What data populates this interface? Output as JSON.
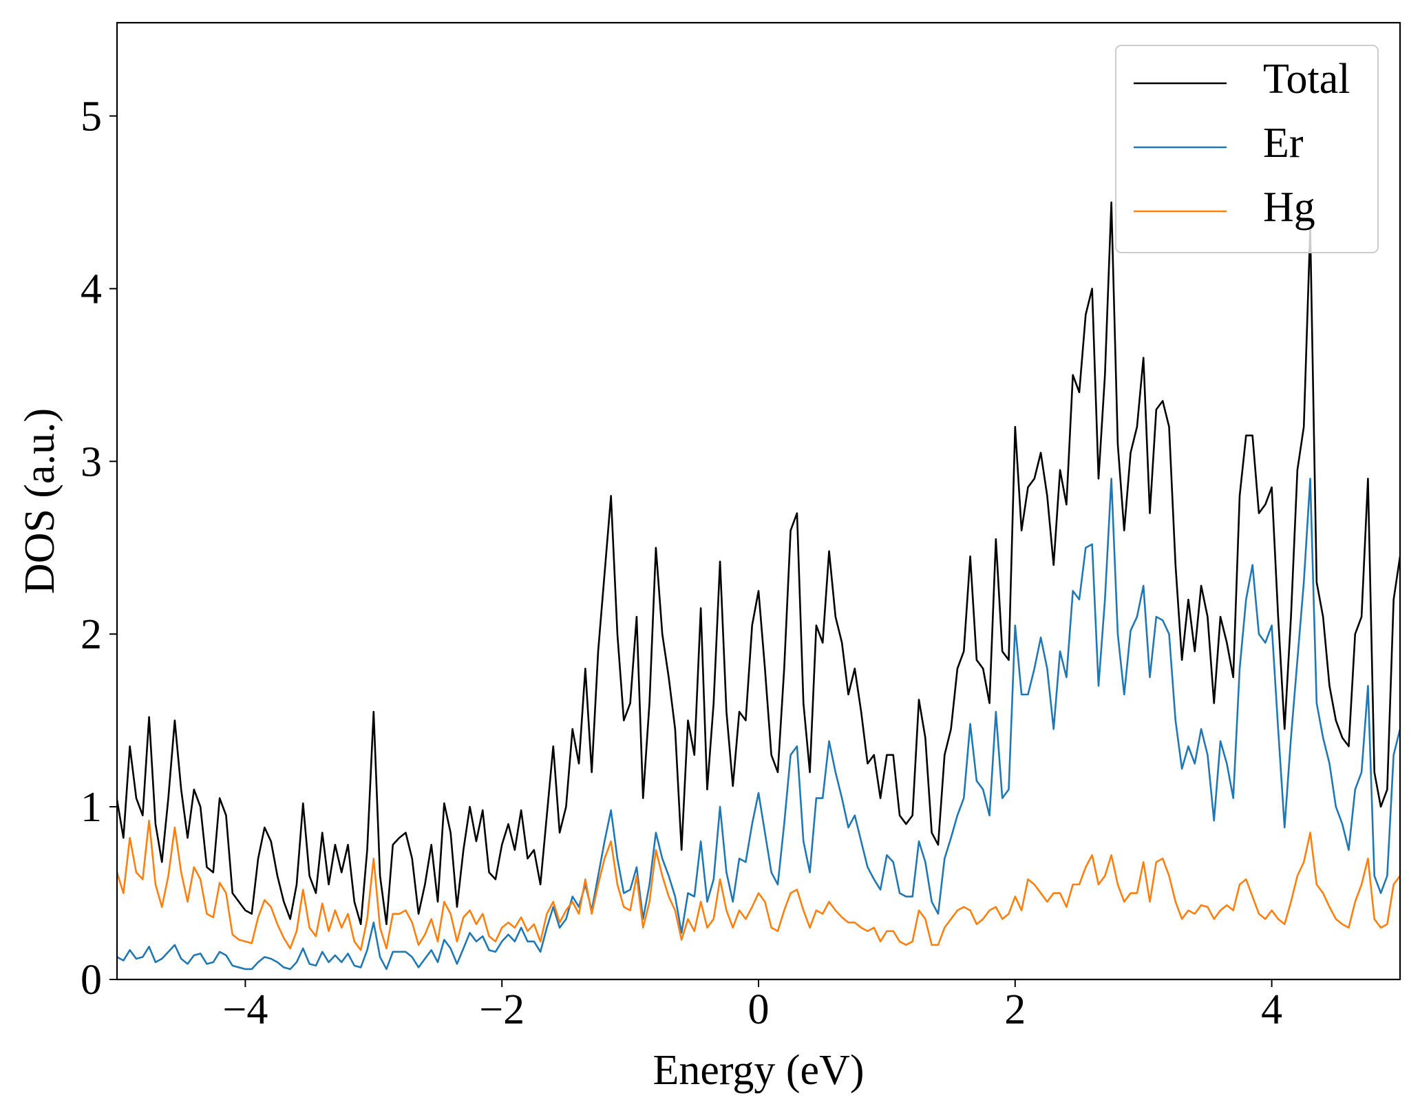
{
  "chart_data": {
    "type": "line",
    "x_label": "Energy (eV)",
    "y_label": "DOS (a.u.)",
    "xlim": [
      -5,
      5
    ],
    "ylim": [
      0,
      5.54
    ],
    "xticks": [
      {
        "value": -4,
        "label": "−4"
      },
      {
        "value": -2,
        "label": "−2"
      },
      0,
      2,
      4
    ],
    "yticks": [
      0,
      1,
      2,
      3,
      4,
      5
    ],
    "legend": "upper right",
    "x": [
      -5,
      -4.95,
      -4.9,
      -4.85,
      -4.8,
      -4.75,
      -4.7,
      -4.65,
      -4.6,
      -4.55,
      -4.5,
      -4.45,
      -4.4,
      -4.35,
      -4.3,
      -4.25,
      -4.2,
      -4.15,
      -4.1,
      -4.05,
      -4,
      -3.95,
      -3.9,
      -3.85,
      -3.8,
      -3.75,
      -3.7,
      -3.65,
      -3.6,
      -3.55,
      -3.5,
      -3.45,
      -3.4,
      -3.35,
      -3.3,
      -3.25,
      -3.2,
      -3.15,
      -3.1,
      -3.05,
      -3,
      -2.95,
      -2.9,
      -2.85,
      -2.8,
      -2.75,
      -2.7,
      -2.65,
      -2.6,
      -2.55,
      -2.5,
      -2.45,
      -2.4,
      -2.35,
      -2.3,
      -2.25,
      -2.2,
      -2.15,
      -2.1,
      -2.05,
      -2,
      -1.95,
      -1.9,
      -1.85,
      -1.8,
      -1.75,
      -1.7,
      -1.65,
      -1.6,
      -1.55,
      -1.5,
      -1.45,
      -1.4,
      -1.35,
      -1.3,
      -1.25,
      -1.2,
      -1.15,
      -1.1,
      -1.05,
      -1,
      -0.95,
      -0.9,
      -0.85,
      -0.8,
      -0.75,
      -0.7,
      -0.65,
      -0.6,
      -0.55,
      -0.5,
      -0.45,
      -0.4,
      -0.35,
      -0.3,
      -0.25,
      -0.2,
      -0.15,
      -0.1,
      -0.05,
      0,
      0.05,
      0.1,
      0.15,
      0.2,
      0.25,
      0.3,
      0.35,
      0.4,
      0.45,
      0.5,
      0.55,
      0.6,
      0.65,
      0.7,
      0.75,
      0.8,
      0.85,
      0.9,
      0.95,
      1,
      1.05,
      1.1,
      1.15,
      1.2,
      1.25,
      1.3,
      1.35,
      1.4,
      1.45,
      1.5,
      1.55,
      1.6,
      1.65,
      1.7,
      1.75,
      1.8,
      1.85,
      1.9,
      1.95,
      2,
      2.05,
      2.1,
      2.15,
      2.2,
      2.25,
      2.3,
      2.35,
      2.4,
      2.45,
      2.5,
      2.55,
      2.6,
      2.65,
      2.7,
      2.75,
      2.8,
      2.85,
      2.9,
      2.95,
      3,
      3.05,
      3.1,
      3.15,
      3.2,
      3.25,
      3.3,
      3.35,
      3.4,
      3.45,
      3.5,
      3.55,
      3.6,
      3.65,
      3.7,
      3.75,
      3.8,
      3.85,
      3.9,
      3.95,
      4,
      4.05,
      4.1,
      4.15,
      4.2,
      4.25,
      4.3,
      4.35,
      4.4,
      4.45,
      4.5,
      4.55,
      4.6,
      4.65,
      4.7,
      4.75,
      4.8,
      4.85,
      4.9,
      4.95,
      5
    ],
    "series": [
      {
        "name": "Total",
        "color": "#000000",
        "values": [
          1.04,
          0.82,
          1.35,
          1.05,
          0.95,
          1.52,
          0.9,
          0.68,
          1.05,
          1.5,
          1.1,
          0.82,
          1.1,
          1.0,
          0.65,
          0.62,
          1.05,
          0.95,
          0.5,
          0.45,
          0.4,
          0.38,
          0.7,
          0.88,
          0.8,
          0.6,
          0.45,
          0.35,
          0.55,
          1.02,
          0.6,
          0.5,
          0.85,
          0.55,
          0.78,
          0.62,
          0.78,
          0.45,
          0.32,
          0.75,
          1.55,
          0.6,
          0.32,
          0.78,
          0.82,
          0.85,
          0.7,
          0.38,
          0.55,
          0.78,
          0.45,
          1.02,
          0.85,
          0.42,
          0.75,
          1.0,
          0.8,
          0.98,
          0.62,
          0.58,
          0.78,
          0.9,
          0.75,
          0.98,
          0.7,
          0.75,
          0.55,
          0.95,
          1.35,
          0.85,
          1.0,
          1.45,
          1.25,
          1.8,
          1.2,
          1.9,
          2.35,
          2.8,
          2.0,
          1.5,
          1.6,
          2.1,
          1.05,
          1.6,
          2.5,
          2.0,
          1.75,
          1.45,
          0.75,
          1.5,
          1.3,
          2.15,
          1.1,
          1.6,
          2.42,
          1.55,
          1.12,
          1.55,
          1.5,
          2.05,
          2.25,
          1.8,
          1.3,
          1.2,
          1.8,
          2.6,
          2.7,
          1.6,
          1.2,
          2.05,
          1.95,
          2.48,
          2.1,
          1.95,
          1.65,
          1.8,
          1.55,
          1.25,
          1.3,
          1.05,
          1.3,
          1.3,
          0.95,
          0.9,
          0.95,
          1.62,
          1.4,
          0.85,
          0.78,
          1.3,
          1.45,
          1.8,
          1.9,
          2.45,
          1.85,
          1.8,
          1.6,
          2.55,
          1.9,
          1.85,
          3.2,
          2.6,
          2.85,
          2.9,
          3.05,
          2.8,
          2.4,
          2.95,
          2.75,
          3.5,
          3.4,
          3.85,
          4.0,
          2.9,
          3.5,
          4.5,
          3.1,
          2.6,
          3.05,
          3.2,
          3.6,
          2.7,
          3.3,
          3.35,
          3.2,
          2.4,
          1.85,
          2.2,
          1.9,
          2.28,
          2.1,
          1.6,
          2.1,
          1.95,
          1.75,
          2.8,
          3.15,
          3.15,
          2.7,
          2.75,
          2.85,
          2.1,
          1.45,
          2.1,
          2.95,
          3.2,
          4.35,
          2.3,
          2.1,
          1.7,
          1.5,
          1.4,
          1.35,
          2.0,
          2.1,
          2.9,
          1.2,
          1.0,
          1.1,
          2.2,
          2.45
        ]
      },
      {
        "name": "Er",
        "color": "#1f77b4",
        "values": [
          0.13,
          0.11,
          0.17,
          0.12,
          0.13,
          0.19,
          0.1,
          0.12,
          0.16,
          0.2,
          0.12,
          0.09,
          0.14,
          0.15,
          0.09,
          0.1,
          0.16,
          0.14,
          0.08,
          0.07,
          0.06,
          0.06,
          0.1,
          0.13,
          0.12,
          0.1,
          0.07,
          0.06,
          0.1,
          0.18,
          0.09,
          0.08,
          0.16,
          0.1,
          0.14,
          0.1,
          0.15,
          0.08,
          0.07,
          0.17,
          0.33,
          0.13,
          0.06,
          0.16,
          0.16,
          0.16,
          0.13,
          0.07,
          0.12,
          0.17,
          0.1,
          0.23,
          0.18,
          0.09,
          0.18,
          0.27,
          0.22,
          0.25,
          0.17,
          0.16,
          0.22,
          0.26,
          0.22,
          0.3,
          0.22,
          0.22,
          0.16,
          0.3,
          0.42,
          0.3,
          0.35,
          0.48,
          0.42,
          0.55,
          0.4,
          0.6,
          0.8,
          0.98,
          0.7,
          0.5,
          0.52,
          0.65,
          0.35,
          0.55,
          0.85,
          0.7,
          0.6,
          0.48,
          0.27,
          0.5,
          0.48,
          0.8,
          0.45,
          0.58,
          1.0,
          0.62,
          0.45,
          0.7,
          0.68,
          0.9,
          1.08,
          0.85,
          0.62,
          0.55,
          0.9,
          1.3,
          1.35,
          0.8,
          0.62,
          1.05,
          1.05,
          1.38,
          1.2,
          1.05,
          0.88,
          0.95,
          0.8,
          0.65,
          0.58,
          0.52,
          0.72,
          0.68,
          0.5,
          0.48,
          0.48,
          0.8,
          0.68,
          0.45,
          0.38,
          0.7,
          0.82,
          0.95,
          1.05,
          1.48,
          1.15,
          1.1,
          0.95,
          1.55,
          1.05,
          1.1,
          2.05,
          1.65,
          1.65,
          1.8,
          1.98,
          1.8,
          1.45,
          1.9,
          1.75,
          2.25,
          2.2,
          2.5,
          2.52,
          1.7,
          2.2,
          2.9,
          2.0,
          1.65,
          2.02,
          2.1,
          2.28,
          1.75,
          2.1,
          2.08,
          2.0,
          1.5,
          1.22,
          1.35,
          1.25,
          1.45,
          1.3,
          0.92,
          1.38,
          1.25,
          1.05,
          1.8,
          2.2,
          2.4,
          2.0,
          1.95,
          2.05,
          1.45,
          0.88,
          1.4,
          1.85,
          2.3,
          2.9,
          1.6,
          1.4,
          1.25,
          1.0,
          0.9,
          0.75,
          1.1,
          1.2,
          1.7,
          0.6,
          0.5,
          0.6,
          1.3,
          1.45
        ]
      },
      {
        "name": "Hg",
        "color": "#ff7f0e",
        "values": [
          0.62,
          0.5,
          0.82,
          0.62,
          0.58,
          0.92,
          0.55,
          0.42,
          0.6,
          0.88,
          0.62,
          0.45,
          0.65,
          0.58,
          0.38,
          0.36,
          0.56,
          0.5,
          0.26,
          0.23,
          0.22,
          0.21,
          0.36,
          0.46,
          0.42,
          0.32,
          0.24,
          0.18,
          0.28,
          0.52,
          0.3,
          0.25,
          0.44,
          0.28,
          0.4,
          0.3,
          0.38,
          0.22,
          0.17,
          0.35,
          0.7,
          0.3,
          0.18,
          0.38,
          0.38,
          0.4,
          0.33,
          0.2,
          0.26,
          0.35,
          0.22,
          0.45,
          0.38,
          0.22,
          0.36,
          0.4,
          0.32,
          0.38,
          0.25,
          0.22,
          0.3,
          0.33,
          0.3,
          0.36,
          0.28,
          0.32,
          0.22,
          0.38,
          0.45,
          0.33,
          0.4,
          0.45,
          0.38,
          0.58,
          0.38,
          0.55,
          0.7,
          0.8,
          0.55,
          0.42,
          0.4,
          0.6,
          0.3,
          0.45,
          0.75,
          0.6,
          0.48,
          0.4,
          0.23,
          0.35,
          0.28,
          0.45,
          0.3,
          0.35,
          0.58,
          0.4,
          0.3,
          0.4,
          0.35,
          0.42,
          0.5,
          0.45,
          0.3,
          0.28,
          0.4,
          0.5,
          0.52,
          0.4,
          0.3,
          0.4,
          0.38,
          0.45,
          0.4,
          0.36,
          0.33,
          0.33,
          0.3,
          0.28,
          0.3,
          0.22,
          0.28,
          0.28,
          0.22,
          0.2,
          0.22,
          0.4,
          0.35,
          0.2,
          0.2,
          0.3,
          0.35,
          0.4,
          0.42,
          0.4,
          0.32,
          0.35,
          0.4,
          0.42,
          0.35,
          0.38,
          0.48,
          0.4,
          0.58,
          0.55,
          0.5,
          0.45,
          0.5,
          0.5,
          0.42,
          0.55,
          0.55,
          0.65,
          0.72,
          0.55,
          0.6,
          0.72,
          0.55,
          0.45,
          0.5,
          0.5,
          0.68,
          0.45,
          0.68,
          0.7,
          0.6,
          0.45,
          0.35,
          0.4,
          0.38,
          0.43,
          0.42,
          0.35,
          0.4,
          0.43,
          0.4,
          0.55,
          0.58,
          0.48,
          0.38,
          0.35,
          0.4,
          0.35,
          0.32,
          0.45,
          0.6,
          0.68,
          0.85,
          0.55,
          0.5,
          0.42,
          0.35,
          0.32,
          0.3,
          0.45,
          0.55,
          0.7,
          0.35,
          0.3,
          0.32,
          0.55,
          0.6
        ]
      }
    ]
  }
}
